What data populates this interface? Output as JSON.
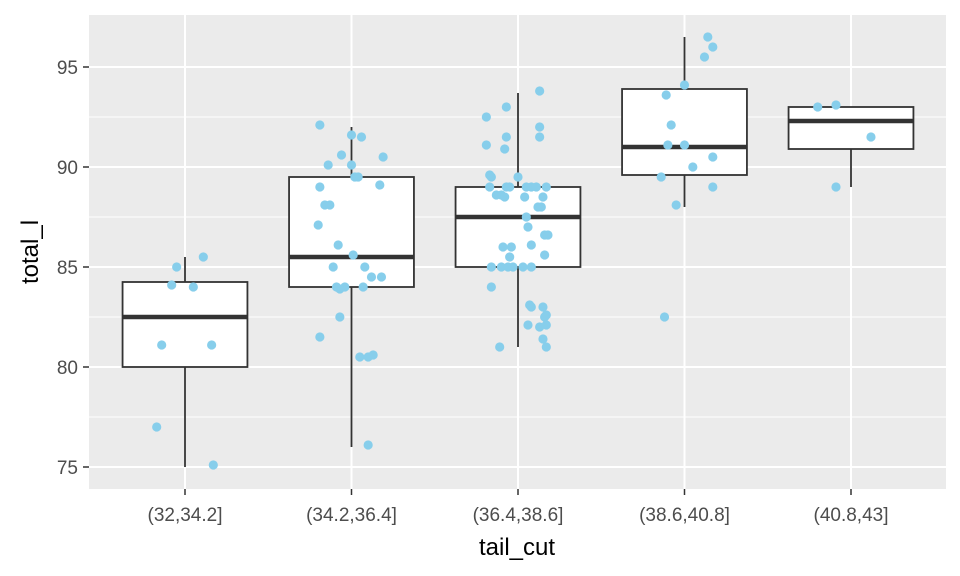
{
  "chart_data": {
    "type": "boxplot",
    "xlabel": "tail_cut",
    "ylabel": "total_l",
    "ylim": [
      73.9,
      97.6
    ],
    "yticks": [
      75,
      80,
      85,
      90,
      95
    ],
    "grid": true,
    "colors": {
      "panel": "#ebebeb",
      "grid": "#ffffff",
      "point": "#87ceeb",
      "box_line": "#333333",
      "box_fill": "#ffffff"
    },
    "categories": [
      "(32,34.2]",
      "(34.2,36.4]",
      "(36.4,38.6]",
      "(38.6,40.8]",
      "(40.8,43]"
    ],
    "boxes": [
      {
        "category": "(32,34.2]",
        "whisker_low": 75,
        "q1": 80,
        "median": 82.5,
        "q3": 84.25,
        "whisker_high": 85.5,
        "outliers": []
      },
      {
        "category": "(34.2,36.4]",
        "whisker_low": 76,
        "q1": 84,
        "median": 85.5,
        "q3": 89.5,
        "whisker_high": 92,
        "outliers": []
      },
      {
        "category": "(36.4,38.6]",
        "whisker_low": 81,
        "q1": 85,
        "median": 87.5,
        "q3": 89,
        "whisker_high": 93.7,
        "outliers": []
      },
      {
        "category": "(38.6,40.8]",
        "whisker_low": 88,
        "q1": 89.6,
        "median": 91,
        "q3": 93.9,
        "whisker_high": 96.5,
        "outliers": [
          82.5
        ]
      },
      {
        "category": "(40.8,43]",
        "whisker_low": 89,
        "q1": 90.9,
        "median": 92.3,
        "q3": 93,
        "whisker_high": 93,
        "outliers": []
      }
    ],
    "points": [
      {
        "category": 0,
        "offset": -0.05,
        "y": 85.0
      },
      {
        "category": 0,
        "offset": 0.11,
        "y": 85.5
      },
      {
        "category": 0,
        "offset": -0.08,
        "y": 84.1
      },
      {
        "category": 0,
        "offset": 0.05,
        "y": 84.0
      },
      {
        "category": 0,
        "offset": -0.14,
        "y": 81.1
      },
      {
        "category": 0,
        "offset": 0.16,
        "y": 81.1
      },
      {
        "category": 0,
        "offset": -0.17,
        "y": 77.0
      },
      {
        "category": 0,
        "offset": 0.17,
        "y": 75.1
      },
      {
        "category": 1,
        "offset": -0.19,
        "y": 92.1
      },
      {
        "category": 1,
        "offset": 0.0,
        "y": 91.6
      },
      {
        "category": 1,
        "offset": 0.06,
        "y": 91.5
      },
      {
        "category": 1,
        "offset": -0.06,
        "y": 90.6
      },
      {
        "category": 1,
        "offset": 0.19,
        "y": 90.5
      },
      {
        "category": 1,
        "offset": -0.14,
        "y": 90.1
      },
      {
        "category": 1,
        "offset": 0.0,
        "y": 90.1
      },
      {
        "category": 1,
        "offset": 0.02,
        "y": 89.5
      },
      {
        "category": 1,
        "offset": 0.04,
        "y": 89.5
      },
      {
        "category": 1,
        "offset": -0.19,
        "y": 89.0
      },
      {
        "category": 1,
        "offset": 0.17,
        "y": 89.1
      },
      {
        "category": 1,
        "offset": -0.16,
        "y": 88.1
      },
      {
        "category": 1,
        "offset": -0.13,
        "y": 88.1
      },
      {
        "category": 1,
        "offset": -0.2,
        "y": 87.1
      },
      {
        "category": 1,
        "offset": -0.08,
        "y": 86.1
      },
      {
        "category": 1,
        "offset": 0.01,
        "y": 85.6
      },
      {
        "category": 1,
        "offset": -0.11,
        "y": 85.0
      },
      {
        "category": 1,
        "offset": 0.08,
        "y": 85.0
      },
      {
        "category": 1,
        "offset": 0.12,
        "y": 84.5
      },
      {
        "category": 1,
        "offset": 0.18,
        "y": 84.5
      },
      {
        "category": 1,
        "offset": -0.04,
        "y": 84.0
      },
      {
        "category": 1,
        "offset": -0.09,
        "y": 84.0
      },
      {
        "category": 1,
        "offset": -0.07,
        "y": 83.9
      },
      {
        "category": 1,
        "offset": 0.07,
        "y": 84.0
      },
      {
        "category": 1,
        "offset": -0.07,
        "y": 82.5
      },
      {
        "category": 1,
        "offset": -0.19,
        "y": 81.5
      },
      {
        "category": 1,
        "offset": 0.05,
        "y": 80.5
      },
      {
        "category": 1,
        "offset": 0.1,
        "y": 80.5
      },
      {
        "category": 1,
        "offset": 0.13,
        "y": 80.6
      },
      {
        "category": 1,
        "offset": 0.1,
        "y": 76.1
      },
      {
        "category": 2,
        "offset": 0.13,
        "y": 93.8
      },
      {
        "category": 2,
        "offset": -0.07,
        "y": 93.0
      },
      {
        "category": 2,
        "offset": -0.19,
        "y": 92.5
      },
      {
        "category": 2,
        "offset": 0.13,
        "y": 92.0
      },
      {
        "category": 2,
        "offset": -0.07,
        "y": 91.5
      },
      {
        "category": 2,
        "offset": 0.13,
        "y": 91.5
      },
      {
        "category": 2,
        "offset": -0.19,
        "y": 91.1
      },
      {
        "category": 2,
        "offset": -0.08,
        "y": 90.9
      },
      {
        "category": 2,
        "offset": -0.17,
        "y": 89.6
      },
      {
        "category": 2,
        "offset": -0.16,
        "y": 89.5
      },
      {
        "category": 2,
        "offset": 0.0,
        "y": 89.5
      },
      {
        "category": 2,
        "offset": -0.17,
        "y": 89.0
      },
      {
        "category": 2,
        "offset": -0.07,
        "y": 89.0
      },
      {
        "category": 2,
        "offset": -0.05,
        "y": 89.0
      },
      {
        "category": 2,
        "offset": 0.05,
        "y": 89.0
      },
      {
        "category": 2,
        "offset": 0.08,
        "y": 89.0
      },
      {
        "category": 2,
        "offset": 0.11,
        "y": 89.0
      },
      {
        "category": 2,
        "offset": 0.17,
        "y": 89.0
      },
      {
        "category": 2,
        "offset": -0.13,
        "y": 88.6
      },
      {
        "category": 2,
        "offset": -0.1,
        "y": 88.6
      },
      {
        "category": 2,
        "offset": -0.08,
        "y": 88.5
      },
      {
        "category": 2,
        "offset": 0.04,
        "y": 88.5
      },
      {
        "category": 2,
        "offset": 0.15,
        "y": 88.5
      },
      {
        "category": 2,
        "offset": 0.12,
        "y": 88.0
      },
      {
        "category": 2,
        "offset": 0.14,
        "y": 88.0
      },
      {
        "category": 2,
        "offset": 0.05,
        "y": 87.5
      },
      {
        "category": 2,
        "offset": 0.06,
        "y": 87.0
      },
      {
        "category": 2,
        "offset": 0.16,
        "y": 86.6
      },
      {
        "category": 2,
        "offset": 0.18,
        "y": 86.6
      },
      {
        "category": 2,
        "offset": -0.09,
        "y": 86.0
      },
      {
        "category": 2,
        "offset": -0.04,
        "y": 86.0
      },
      {
        "category": 2,
        "offset": 0.08,
        "y": 86.1
      },
      {
        "category": 2,
        "offset": 0.16,
        "y": 85.6
      },
      {
        "category": 2,
        "offset": -0.05,
        "y": 85.5
      },
      {
        "category": 2,
        "offset": -0.16,
        "y": 85.0
      },
      {
        "category": 2,
        "offset": -0.1,
        "y": 85.0
      },
      {
        "category": 2,
        "offset": -0.06,
        "y": 85.0
      },
      {
        "category": 2,
        "offset": -0.03,
        "y": 85.0
      },
      {
        "category": 2,
        "offset": 0.03,
        "y": 85.0
      },
      {
        "category": 2,
        "offset": 0.08,
        "y": 85.0
      },
      {
        "category": 2,
        "offset": -0.16,
        "y": 84.0
      },
      {
        "category": 2,
        "offset": 0.07,
        "y": 83.1
      },
      {
        "category": 2,
        "offset": 0.08,
        "y": 83.0
      },
      {
        "category": 2,
        "offset": 0.15,
        "y": 83.0
      },
      {
        "category": 2,
        "offset": 0.17,
        "y": 82.6
      },
      {
        "category": 2,
        "offset": 0.16,
        "y": 82.5
      },
      {
        "category": 2,
        "offset": 0.06,
        "y": 82.1
      },
      {
        "category": 2,
        "offset": 0.13,
        "y": 82.0
      },
      {
        "category": 2,
        "offset": 0.17,
        "y": 82.1
      },
      {
        "category": 2,
        "offset": 0.15,
        "y": 81.4
      },
      {
        "category": 2,
        "offset": -0.11,
        "y": 81.0
      },
      {
        "category": 2,
        "offset": 0.17,
        "y": 81.0
      },
      {
        "category": 3,
        "offset": 0.14,
        "y": 96.5
      },
      {
        "category": 3,
        "offset": 0.17,
        "y": 96.0
      },
      {
        "category": 3,
        "offset": 0.12,
        "y": 95.5
      },
      {
        "category": 3,
        "offset": 0.0,
        "y": 94.1
      },
      {
        "category": 3,
        "offset": -0.11,
        "y": 93.6
      },
      {
        "category": 3,
        "offset": -0.08,
        "y": 92.1
      },
      {
        "category": 3,
        "offset": -0.1,
        "y": 91.1
      },
      {
        "category": 3,
        "offset": 0.0,
        "y": 91.1
      },
      {
        "category": 3,
        "offset": 0.17,
        "y": 90.5
      },
      {
        "category": 3,
        "offset": 0.05,
        "y": 90.0
      },
      {
        "category": 3,
        "offset": -0.14,
        "y": 89.5
      },
      {
        "category": 3,
        "offset": 0.17,
        "y": 89.0
      },
      {
        "category": 3,
        "offset": -0.05,
        "y": 88.1
      },
      {
        "category": 3,
        "offset": -0.12,
        "y": 82.5
      },
      {
        "category": 4,
        "offset": -0.2,
        "y": 93.0
      },
      {
        "category": 4,
        "offset": -0.09,
        "y": 93.1
      },
      {
        "category": 4,
        "offset": 0.12,
        "y": 91.5
      },
      {
        "category": 4,
        "offset": -0.09,
        "y": 89.0
      }
    ]
  }
}
